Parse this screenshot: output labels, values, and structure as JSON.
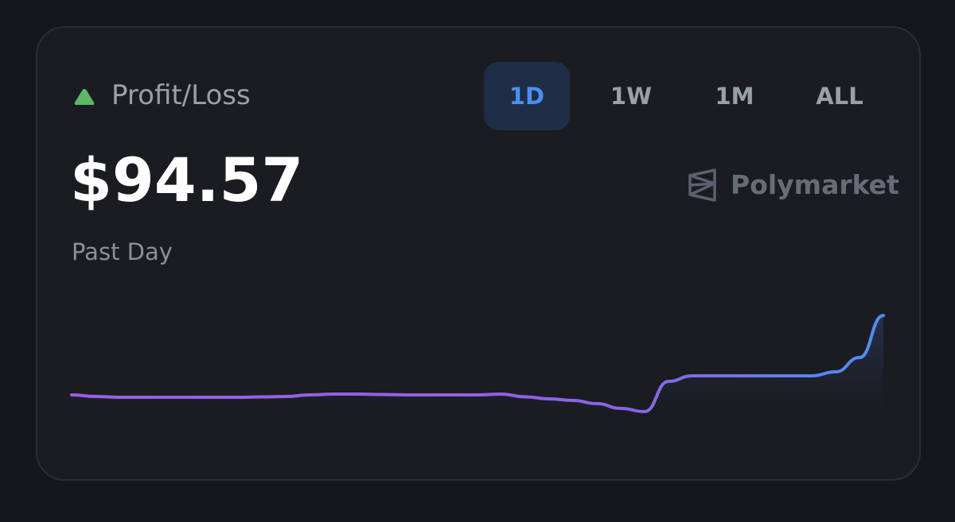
{
  "header": {
    "title": "Profit/Loss",
    "tabs": [
      "1D",
      "1W",
      "1M",
      "ALL"
    ],
    "active_tab": 0
  },
  "amount": "$94.57",
  "brand": "Polymarket",
  "period": "Past Day",
  "chart_data": {
    "type": "line",
    "values": [
      33,
      31,
      30,
      30,
      30,
      30,
      30,
      30,
      30.5,
      31,
      33,
      34,
      34,
      33.5,
      33,
      33,
      33,
      33,
      34,
      30.5,
      28,
      26,
      22,
      16,
      12,
      50,
      57,
      57,
      57,
      57,
      57,
      57,
      62,
      80,
      133
    ],
    "ylim": [
      0,
      140
    ],
    "colors": [
      "#9b5de5",
      "#8a64e8",
      "#4b8ff5"
    ]
  }
}
